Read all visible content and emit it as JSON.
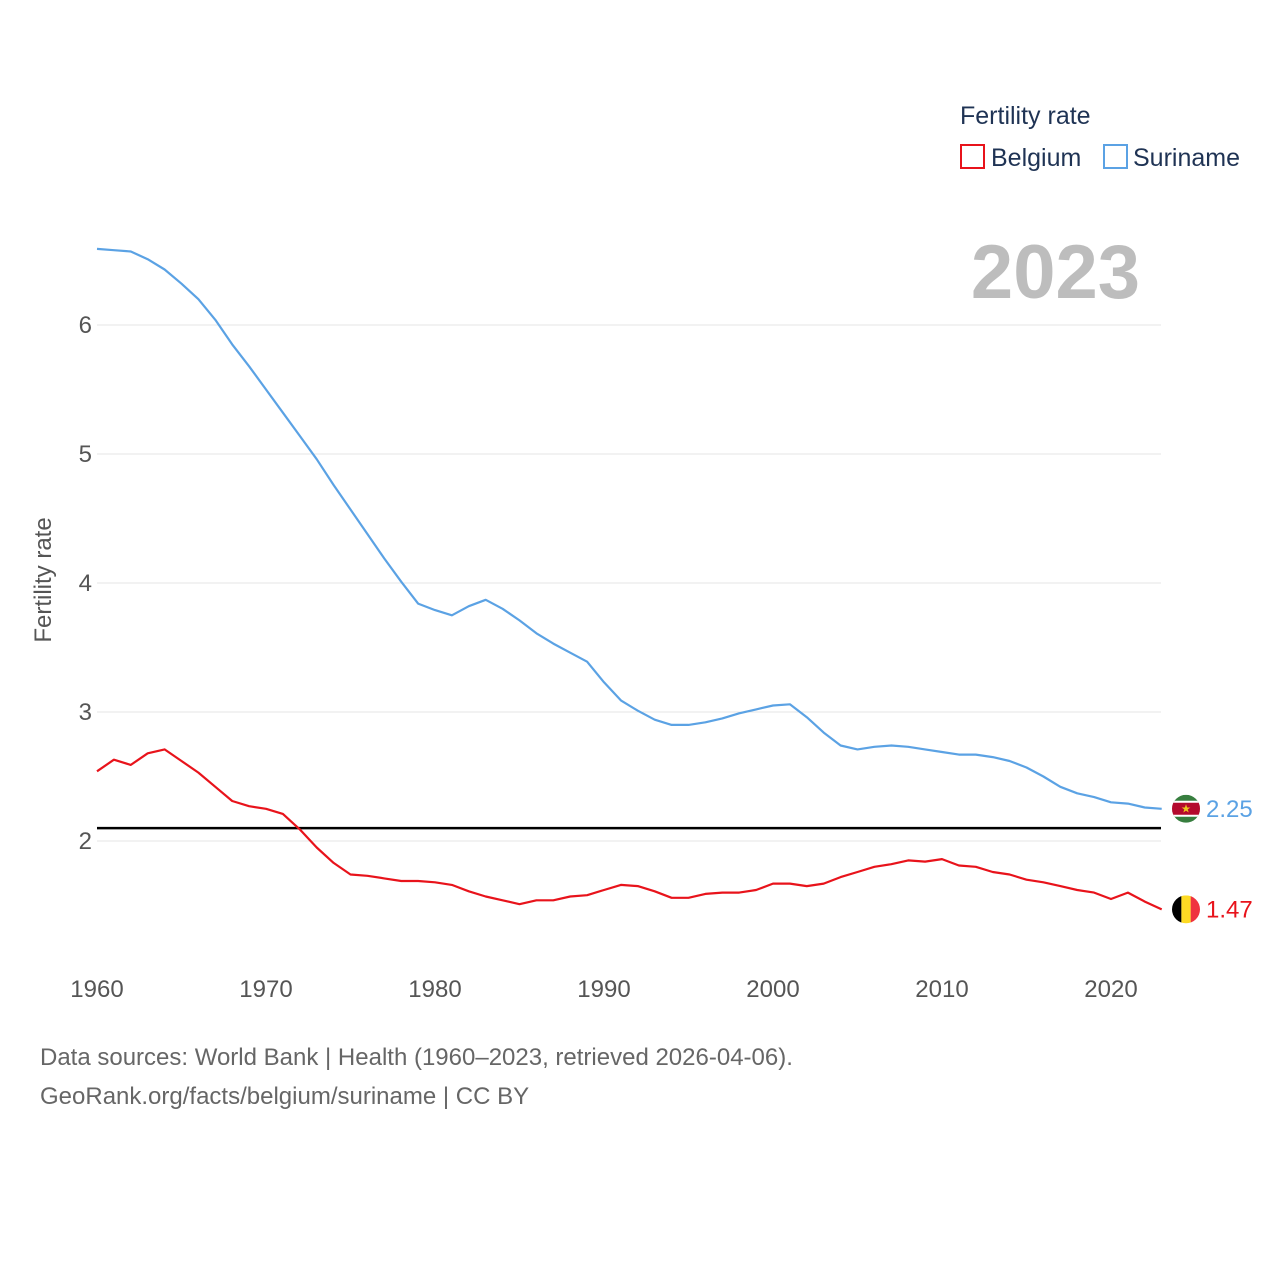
{
  "chart_data": {
    "type": "line",
    "title": "Fertility rate",
    "ylabel": "Fertility rate",
    "xlabel": "",
    "year_label": "2023",
    "xlim": [
      1960,
      2023
    ],
    "ylim": [
      1.0,
      6.8
    ],
    "yticks": [
      2,
      3,
      4,
      5,
      6
    ],
    "xticks": [
      1960,
      1970,
      1980,
      1990,
      2000,
      2010,
      2020
    ],
    "reference_line": 2.1,
    "legend": {
      "title": "Fertility rate",
      "position": "top-right"
    },
    "x": [
      1960,
      1961,
      1962,
      1963,
      1964,
      1965,
      1966,
      1967,
      1968,
      1969,
      1970,
      1971,
      1972,
      1973,
      1974,
      1975,
      1976,
      1977,
      1978,
      1979,
      1980,
      1981,
      1982,
      1983,
      1984,
      1985,
      1986,
      1987,
      1988,
      1989,
      1990,
      1991,
      1992,
      1993,
      1994,
      1995,
      1996,
      1997,
      1998,
      1999,
      2000,
      2001,
      2002,
      2003,
      2004,
      2005,
      2006,
      2007,
      2008,
      2009,
      2010,
      2011,
      2012,
      2013,
      2014,
      2015,
      2016,
      2017,
      2018,
      2019,
      2020,
      2021,
      2022,
      2023
    ],
    "series": [
      {
        "name": "Belgium",
        "color": "#e8131b",
        "end_label": "1.47",
        "flag": "belgium-flag",
        "values": [
          2.54,
          2.63,
          2.59,
          2.68,
          2.71,
          2.62,
          2.53,
          2.42,
          2.31,
          2.27,
          2.25,
          2.21,
          2.09,
          1.95,
          1.83,
          1.74,
          1.73,
          1.71,
          1.69,
          1.69,
          1.68,
          1.66,
          1.61,
          1.57,
          1.54,
          1.51,
          1.54,
          1.54,
          1.57,
          1.58,
          1.62,
          1.66,
          1.65,
          1.61,
          1.56,
          1.56,
          1.59,
          1.6,
          1.6,
          1.62,
          1.67,
          1.67,
          1.65,
          1.67,
          1.72,
          1.76,
          1.8,
          1.82,
          1.85,
          1.84,
          1.86,
          1.81,
          1.8,
          1.76,
          1.74,
          1.7,
          1.68,
          1.65,
          1.62,
          1.6,
          1.55,
          1.6,
          1.53,
          1.47
        ]
      },
      {
        "name": "Suriname",
        "color": "#5ba2e4",
        "end_label": "2.25",
        "flag": "suriname-flag",
        "values": [
          6.59,
          6.58,
          6.57,
          6.51,
          6.43,
          6.32,
          6.2,
          6.04,
          5.85,
          5.68,
          5.5,
          5.32,
          5.14,
          4.96,
          4.76,
          4.57,
          4.38,
          4.19,
          4.01,
          3.84,
          3.79,
          3.75,
          3.82,
          3.87,
          3.8,
          3.71,
          3.61,
          3.53,
          3.46,
          3.39,
          3.23,
          3.09,
          3.01,
          2.94,
          2.9,
          2.9,
          2.92,
          2.95,
          2.99,
          3.02,
          3.05,
          3.06,
          2.96,
          2.84,
          2.74,
          2.71,
          2.73,
          2.74,
          2.73,
          2.71,
          2.69,
          2.67,
          2.67,
          2.65,
          2.62,
          2.57,
          2.5,
          2.42,
          2.37,
          2.34,
          2.3,
          2.29,
          2.26,
          2.25
        ]
      }
    ]
  },
  "footer": {
    "source_line": "Data sources: World Bank | Health (1960–2023, retrieved 2026-04-06).",
    "credit_line": "GeoRank.org/facts/belgium/suriname | CC BY"
  }
}
